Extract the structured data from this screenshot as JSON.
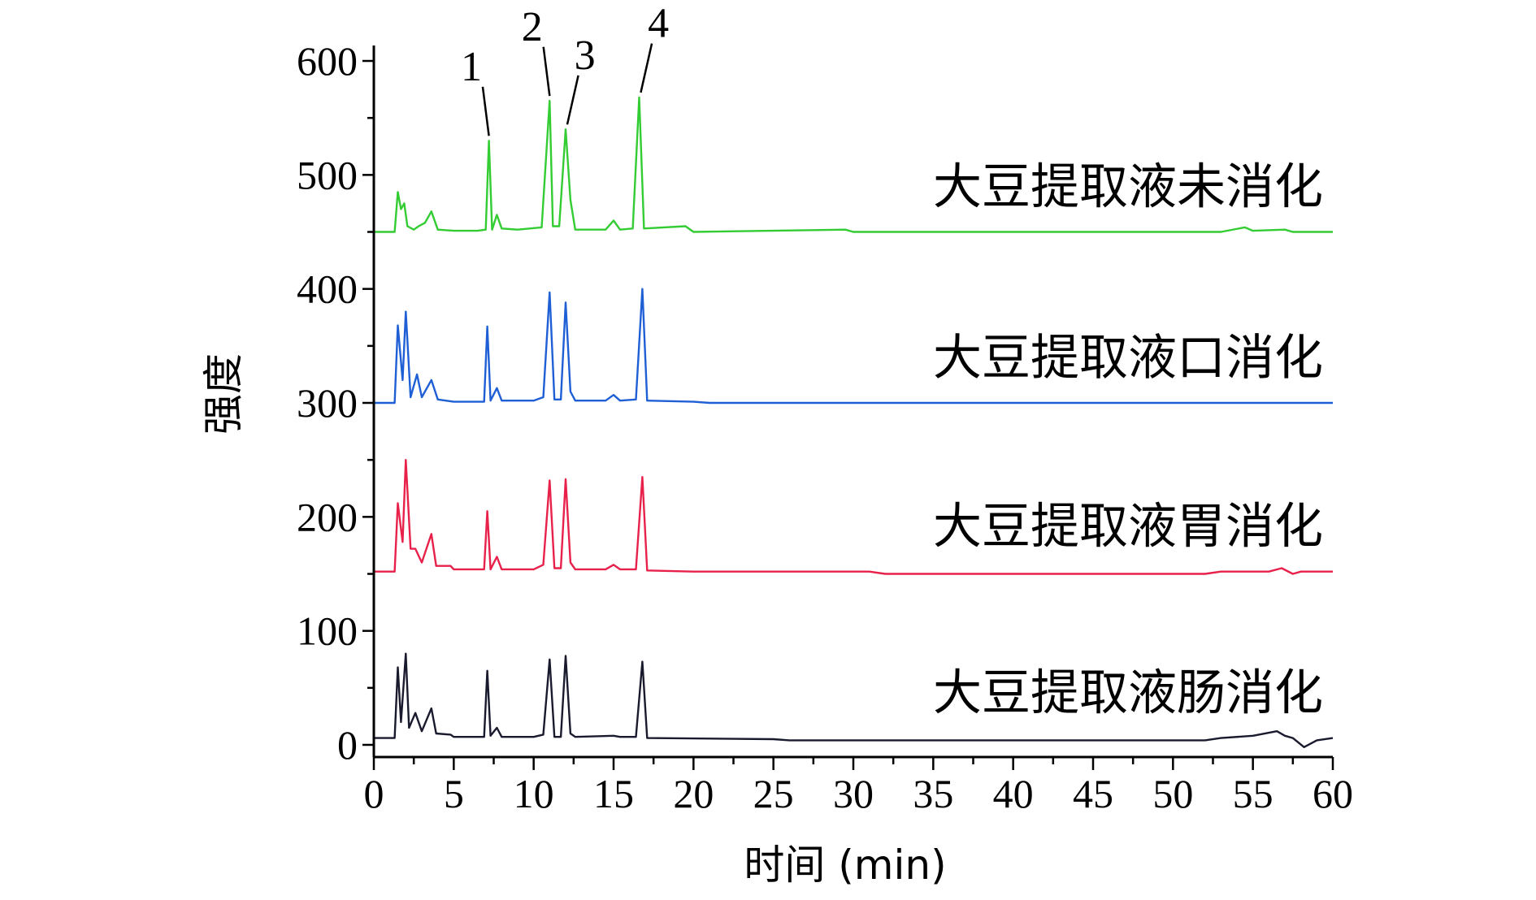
{
  "chart_data": {
    "type": "line",
    "xlabel": "时间 (min)",
    "ylabel": "强度",
    "xlim": [
      0,
      60
    ],
    "ylim": [
      -15,
      620
    ],
    "x_ticks": [
      0,
      5,
      10,
      15,
      20,
      25,
      30,
      35,
      40,
      45,
      50,
      55,
      60
    ],
    "y_ticks": [
      0,
      100,
      200,
      300,
      400,
      500,
      600
    ],
    "grid": false,
    "legend": "none",
    "series": [
      {
        "name": "大豆提取液未消化",
        "color": "#33cc33",
        "baseline": 450,
        "points": [
          [
            0,
            450
          ],
          [
            1.3,
            450
          ],
          [
            1.5,
            485
          ],
          [
            1.7,
            470
          ],
          [
            1.9,
            475
          ],
          [
            2.1,
            455
          ],
          [
            2.5,
            452
          ],
          [
            2.8,
            455
          ],
          [
            3.2,
            458
          ],
          [
            3.6,
            468
          ],
          [
            4,
            452
          ],
          [
            5,
            451
          ],
          [
            6.5,
            451
          ],
          [
            7.0,
            452
          ],
          [
            7.2,
            530
          ],
          [
            7.4,
            452
          ],
          [
            7.7,
            465
          ],
          [
            8,
            453
          ],
          [
            9,
            452
          ],
          [
            10.5,
            454
          ],
          [
            11.0,
            565
          ],
          [
            11.2,
            455
          ],
          [
            11.6,
            455
          ],
          [
            12.0,
            540
          ],
          [
            12.3,
            478
          ],
          [
            12.6,
            452
          ],
          [
            14.5,
            452
          ],
          [
            15.0,
            460
          ],
          [
            15.4,
            452
          ],
          [
            16.2,
            453
          ],
          [
            16.6,
            568
          ],
          [
            16.9,
            453
          ],
          [
            19.5,
            455
          ],
          [
            20,
            450
          ],
          [
            29.5,
            452
          ],
          [
            30,
            450
          ],
          [
            53,
            450
          ],
          [
            54.5,
            454
          ],
          [
            55,
            451
          ],
          [
            57,
            452
          ],
          [
            57.5,
            450
          ],
          [
            60,
            450
          ]
        ]
      },
      {
        "name": "大豆提取液口消化",
        "color": "#1f5fd6",
        "baseline": 300,
        "points": [
          [
            0,
            300
          ],
          [
            1.3,
            300
          ],
          [
            1.5,
            368
          ],
          [
            1.8,
            320
          ],
          [
            2.0,
            380
          ],
          [
            2.3,
            305
          ],
          [
            2.7,
            325
          ],
          [
            3.0,
            305
          ],
          [
            3.6,
            320
          ],
          [
            4,
            303
          ],
          [
            5,
            301
          ],
          [
            6.9,
            301
          ],
          [
            7.1,
            367
          ],
          [
            7.3,
            302
          ],
          [
            7.7,
            313
          ],
          [
            8,
            302
          ],
          [
            10,
            302
          ],
          [
            10.6,
            305
          ],
          [
            11.0,
            397
          ],
          [
            11.3,
            303
          ],
          [
            11.7,
            303
          ],
          [
            12.0,
            388
          ],
          [
            12.3,
            310
          ],
          [
            12.6,
            302
          ],
          [
            14.5,
            302
          ],
          [
            15.0,
            307
          ],
          [
            15.4,
            302
          ],
          [
            16.4,
            303
          ],
          [
            16.8,
            400
          ],
          [
            17.1,
            302
          ],
          [
            20,
            301
          ],
          [
            21,
            300
          ],
          [
            53,
            300
          ],
          [
            57,
            300
          ],
          [
            60,
            300
          ]
        ]
      },
      {
        "name": "大豆提取液胃消化",
        "color": "#e8214b",
        "baseline": 152,
        "points": [
          [
            0,
            152
          ],
          [
            1.3,
            152
          ],
          [
            1.5,
            212
          ],
          [
            1.8,
            178
          ],
          [
            2.0,
            250
          ],
          [
            2.3,
            172
          ],
          [
            2.6,
            172
          ],
          [
            3.0,
            160
          ],
          [
            3.6,
            185
          ],
          [
            3.9,
            157
          ],
          [
            4.8,
            157
          ],
          [
            5,
            154
          ],
          [
            6.9,
            154
          ],
          [
            7.1,
            205
          ],
          [
            7.3,
            154
          ],
          [
            7.7,
            165
          ],
          [
            8,
            154
          ],
          [
            10,
            154
          ],
          [
            10.6,
            158
          ],
          [
            11.0,
            232
          ],
          [
            11.3,
            155
          ],
          [
            11.7,
            155
          ],
          [
            12.0,
            233
          ],
          [
            12.3,
            160
          ],
          [
            12.6,
            154
          ],
          [
            14.5,
            154
          ],
          [
            15.0,
            158
          ],
          [
            15.4,
            154
          ],
          [
            16.4,
            154
          ],
          [
            16.8,
            235
          ],
          [
            17.1,
            153
          ],
          [
            20,
            152
          ],
          [
            31,
            152
          ],
          [
            32,
            150
          ],
          [
            52,
            150
          ],
          [
            53,
            152
          ],
          [
            56,
            152
          ],
          [
            56.8,
            155
          ],
          [
            57.5,
            150
          ],
          [
            58,
            152
          ],
          [
            60,
            152
          ]
        ]
      },
      {
        "name": "大豆提取液肠消化",
        "color": "#1a1a2e",
        "baseline": 6,
        "points": [
          [
            0,
            6
          ],
          [
            1.3,
            6
          ],
          [
            1.5,
            68
          ],
          [
            1.7,
            20
          ],
          [
            2.0,
            80
          ],
          [
            2.2,
            15
          ],
          [
            2.6,
            28
          ],
          [
            3.0,
            12
          ],
          [
            3.6,
            32
          ],
          [
            3.9,
            10
          ],
          [
            4.8,
            9
          ],
          [
            5,
            7
          ],
          [
            6.9,
            7
          ],
          [
            7.1,
            65
          ],
          [
            7.3,
            8
          ],
          [
            7.7,
            15
          ],
          [
            8,
            7
          ],
          [
            10,
            7
          ],
          [
            10.6,
            9
          ],
          [
            11.0,
            75
          ],
          [
            11.3,
            7
          ],
          [
            11.7,
            7
          ],
          [
            12.0,
            78
          ],
          [
            12.3,
            10
          ],
          [
            12.6,
            7
          ],
          [
            15.0,
            8
          ],
          [
            15.4,
            7
          ],
          [
            16.4,
            7
          ],
          [
            16.8,
            73
          ],
          [
            17.1,
            6
          ],
          [
            25,
            5
          ],
          [
            26,
            4
          ],
          [
            52,
            4
          ],
          [
            53,
            6
          ],
          [
            55,
            8
          ],
          [
            56.5,
            12
          ],
          [
            57,
            8
          ],
          [
            57.5,
            6
          ],
          [
            58.2,
            -2
          ],
          [
            59,
            4
          ],
          [
            60,
            6
          ]
        ]
      }
    ],
    "peak_labels": [
      {
        "text": "1",
        "x": 7.2,
        "y": 530,
        "tx": 6.1,
        "ty": 583
      },
      {
        "text": "2",
        "x": 11.0,
        "y": 565,
        "tx": 9.9,
        "ty": 618
      },
      {
        "text": "3",
        "x": 12.1,
        "y": 540,
        "tx": 13.2,
        "ty": 593
      },
      {
        "text": "4",
        "x": 16.7,
        "y": 568,
        "tx": 17.8,
        "ty": 621
      }
    ]
  }
}
